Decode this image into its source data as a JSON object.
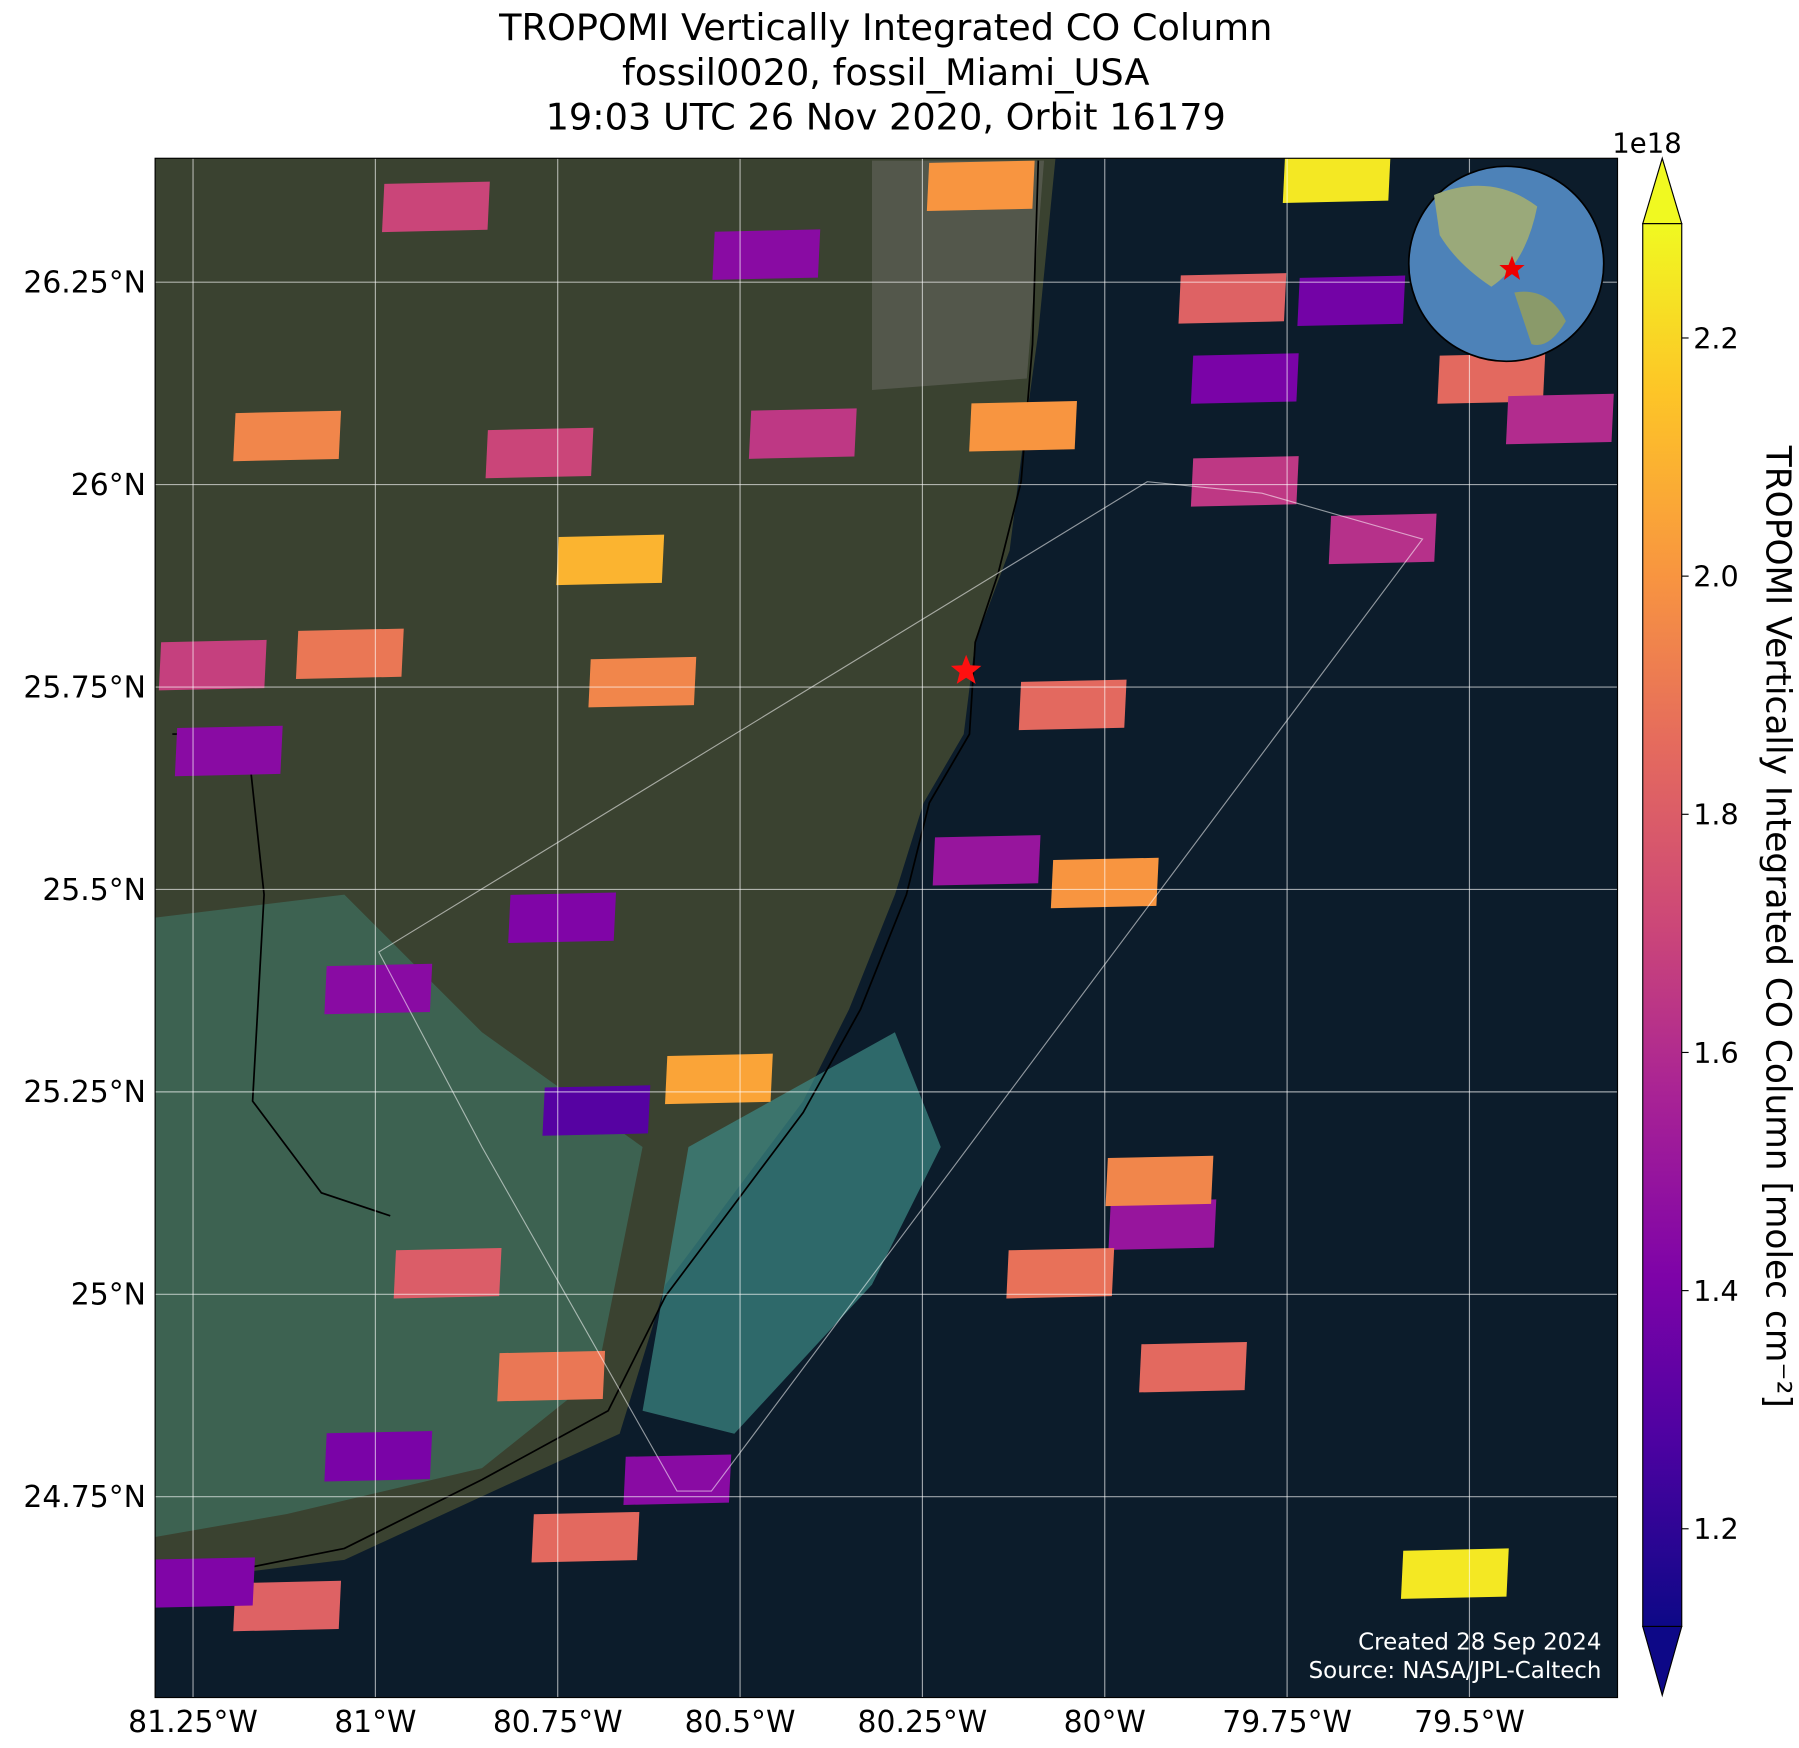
{
  "title": [
    "TROPOMI Vertically Integrated CO Column",
    "fossil0020, fossil_Miami_USA",
    "19:03 UTC 26 Nov 2020, Orbit 16179"
  ],
  "map": {
    "lon_lim": [
      -81.302,
      -79.297
    ],
    "lat_lim": [
      24.502,
      26.403
    ],
    "lon_ticks": [
      {
        "value": -81.25,
        "label": "81.25°W"
      },
      {
        "value": -81,
        "label": "81°W"
      },
      {
        "value": -80.75,
        "label": "80.75°W"
      },
      {
        "value": -80.5,
        "label": "80.5°W"
      },
      {
        "value": -80.25,
        "label": "80.25°W"
      },
      {
        "value": -80,
        "label": "80°W"
      },
      {
        "value": -79.75,
        "label": "79.75°W"
      },
      {
        "value": -79.5,
        "label": "79.5°W"
      }
    ],
    "lat_ticks": [
      {
        "value": 26.25,
        "label": "26.25°N"
      },
      {
        "value": 26,
        "label": "26°N"
      },
      {
        "value": 25.75,
        "label": "25.75°N"
      },
      {
        "value": 25.5,
        "label": "25.5°N"
      },
      {
        "value": 25.25,
        "label": "25.25°N"
      },
      {
        "value": 25,
        "label": "25°N"
      },
      {
        "value": 24.75,
        "label": "24.75°N"
      }
    ],
    "grid": true,
    "pixels": [
      {
        "lon": -80.678,
        "lat": 25.907,
        "value": 2.1
      },
      {
        "lon": -79.682,
        "lat": 26.379,
        "value": 2.25
      },
      {
        "lon": -79.52,
        "lat": 24.655,
        "value": 2.25
      },
      {
        "lon": -80.17,
        "lat": 26.369,
        "value": 2.0
      },
      {
        "lon": -80.112,
        "lat": 26.072,
        "value": 2.0
      },
      {
        "lon": -80.464,
        "lat": 26.284,
        "value": 1.45
      },
      {
        "lon": -79.808,
        "lat": 26.131,
        "value": 1.4
      },
      {
        "lon": -79.662,
        "lat": 26.227,
        "value": 1.38
      },
      {
        "lon": -80.0,
        "lat": 25.508,
        "value": 2.0
      },
      {
        "lon": -80.697,
        "lat": 25.227,
        "value": 1.3
      },
      {
        "lon": -80.996,
        "lat": 25.377,
        "value": 1.45
      },
      {
        "lon": -81.201,
        "lat": 25.671,
        "value": 1.45
      },
      {
        "lon": -80.996,
        "lat": 24.8,
        "value": 1.4
      },
      {
        "lon": -79.921,
        "lat": 25.086,
        "value": 1.5
      },
      {
        "lon": -79.925,
        "lat": 25.14,
        "value": 1.95
      },
      {
        "lon": -80.529,
        "lat": 25.266,
        "value": 2.05
      },
      {
        "lon": -80.634,
        "lat": 25.756,
        "value": 1.95
      },
      {
        "lon": -80.044,
        "lat": 25.728,
        "value": 1.85
      },
      {
        "lon": -79.879,
        "lat": 24.91,
        "value": 1.85
      },
      {
        "lon": -80.061,
        "lat": 25.026,
        "value": 1.88
      },
      {
        "lon": -80.775,
        "lat": 26.039,
        "value": 1.7
      },
      {
        "lon": -81.121,
        "lat": 26.06,
        "value": 1.95
      },
      {
        "lon": -81.035,
        "lat": 25.791,
        "value": 1.9
      },
      {
        "lon": -81.223,
        "lat": 25.777,
        "value": 1.68
      },
      {
        "lon": -79.619,
        "lat": 25.933,
        "value": 1.62
      },
      {
        "lon": -79.808,
        "lat": 26.004,
        "value": 1.65
      },
      {
        "lon": -80.414,
        "lat": 26.063,
        "value": 1.65
      },
      {
        "lon": -80.901,
        "lat": 25.026,
        "value": 1.8
      },
      {
        "lon": -80.759,
        "lat": 24.899,
        "value": 1.9
      },
      {
        "lon": -80.712,
        "lat": 24.7,
        "value": 1.85
      },
      {
        "lon": -80.586,
        "lat": 24.771,
        "value": 1.45
      },
      {
        "lon": -81.121,
        "lat": 24.615,
        "value": 1.82
      },
      {
        "lon": -81.239,
        "lat": 24.644,
        "value": 1.42
      },
      {
        "lon": -80.744,
        "lat": 25.465,
        "value": 1.42
      },
      {
        "lon": -79.47,
        "lat": 26.131,
        "value": 1.85
      },
      {
        "lon": -79.376,
        "lat": 26.081,
        "value": 1.6
      },
      {
        "lon": -80.917,
        "lat": 26.343,
        "value": 1.7
      },
      {
        "lon": -80.162,
        "lat": 25.536,
        "value": 1.5
      },
      {
        "lon": -79.825,
        "lat": 26.23,
        "value": 1.82
      }
    ],
    "target": {
      "lon": -80.19,
      "lat": 25.77
    }
  },
  "colorbar": {
    "label": "TROPOMI Vertically Integrated CO Column [molec cm⁻²]",
    "exponent": "1e18",
    "colormap": "plasma",
    "lim": [
      1.118,
      2.296
    ],
    "ticks": [
      1.2,
      1.4,
      1.6,
      1.8,
      {
        "value": 2,
        "label": "2.0"
      },
      2.2
    ]
  },
  "credits": [
    "Created 28 Sep 2024",
    "Source: NASA/JPL-Caltech"
  ]
}
